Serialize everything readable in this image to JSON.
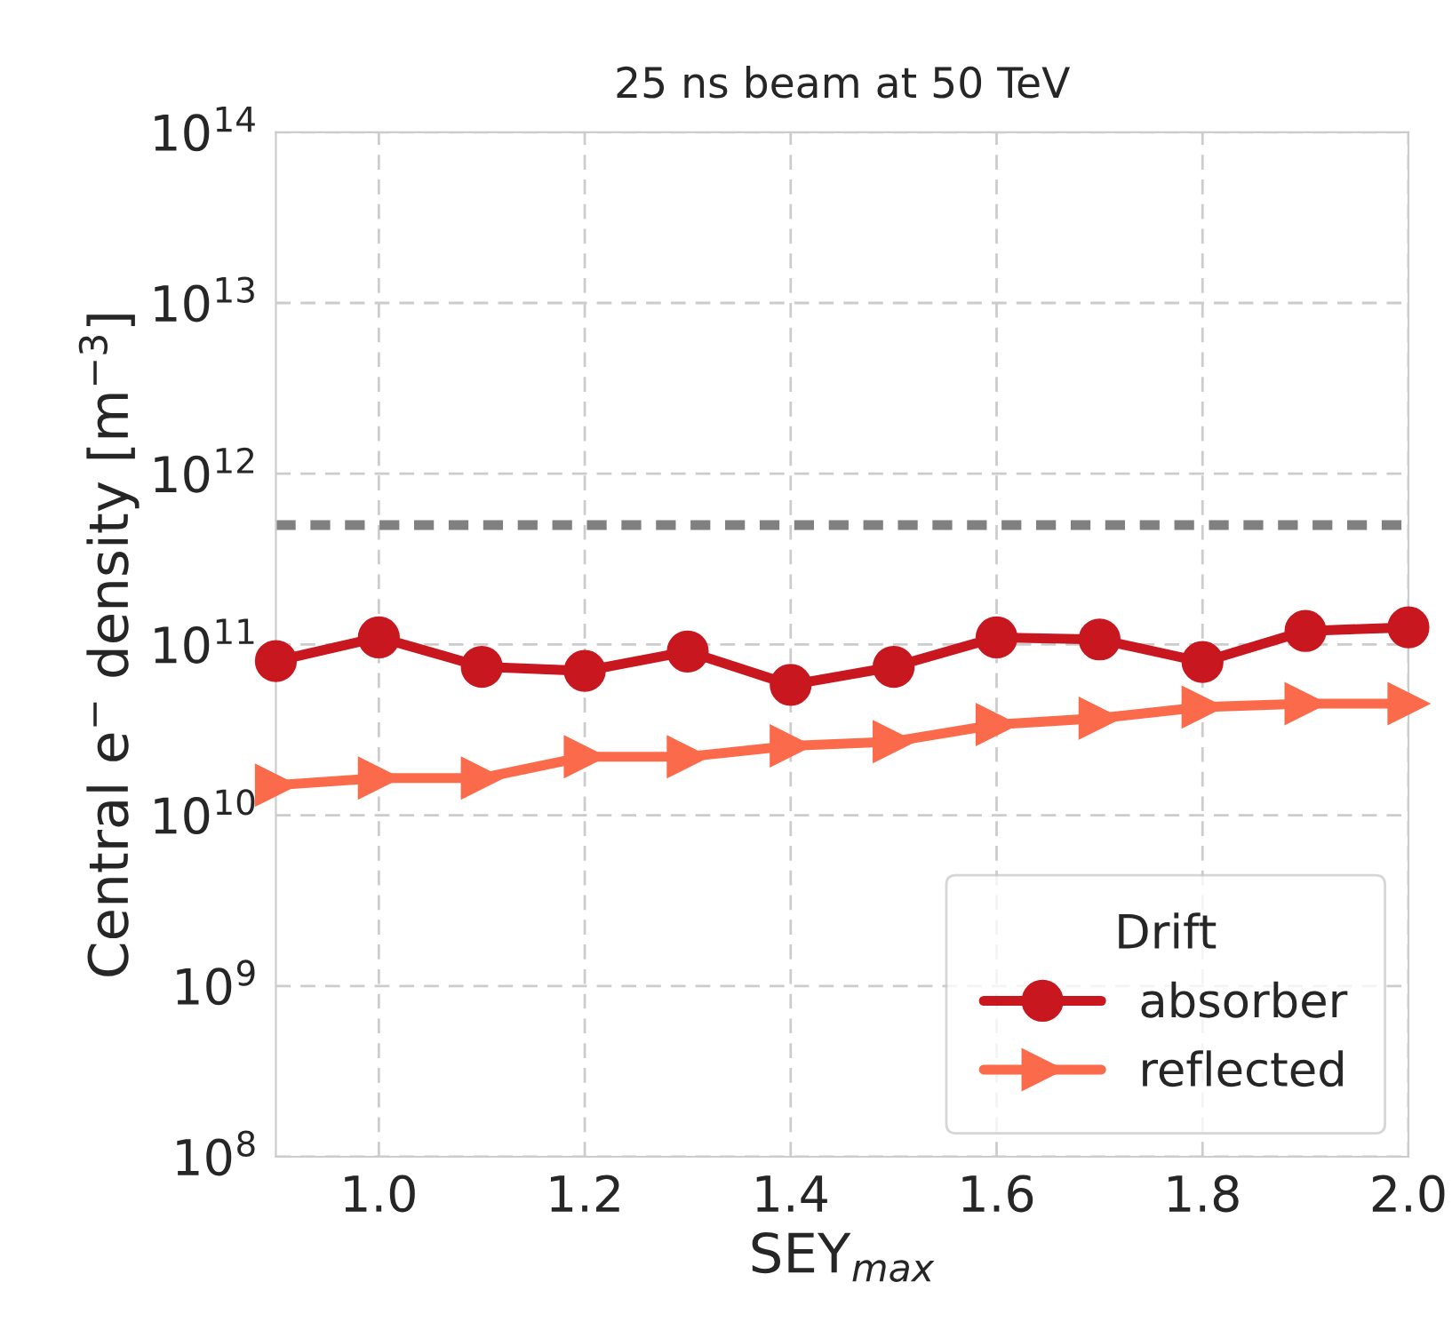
{
  "chart_data": {
    "type": "line",
    "title": "25 ns beam at 50 TeV",
    "xlabel": "SEY$_{max}$",
    "ylabel": "Central e$^{−}$ density [m$^{−3}$]",
    "legend_title": "Drift",
    "x": [
      0.9,
      1.0,
      1.1,
      1.2,
      1.3,
      1.4,
      1.5,
      1.6,
      1.7,
      1.8,
      1.9,
      2.0
    ],
    "series": [
      {
        "name": "absorber",
        "color": "#c8171e",
        "marker": "circle",
        "values": [
          80000000000.0,
          110000000000.0,
          74000000000.0,
          70000000000.0,
          91000000000.0,
          58000000000.0,
          74000000000.0,
          110000000000.0,
          107000000000.0,
          79000000000.0,
          120000000000.0,
          126000000000.0
        ]
      },
      {
        "name": "reflected",
        "color": "#fb6a4a",
        "marker": "triangle",
        "values": [
          15000000000.0,
          16500000000.0,
          16500000000.0,
          22000000000.0,
          22000000000.0,
          25500000000.0,
          27000000000.0,
          34000000000.0,
          37000000000.0,
          43000000000.0,
          45000000000.0,
          45000000000.0
        ]
      }
    ],
    "log": "y",
    "xlim": [
      0.9,
      2.0
    ],
    "xticks": [
      {
        "value": 1.0,
        "label": "1.0"
      },
      1.2,
      1.4,
      1.6,
      1.8,
      {
        "value": 2.0,
        "label": "2.0"
      }
    ],
    "ylim": [
      100000000.0,
      100000000000000.0
    ],
    "yticks": [
      {
        "value": 100000000.0,
        "label": "10$^{8}$"
      },
      {
        "value": 1000000000.0,
        "label": "10$^{9}$"
      },
      {
        "value": 10000000000.0,
        "label": "10$^{10}$"
      },
      {
        "value": 100000000000.0,
        "label": "10$^{11}$"
      },
      {
        "value": 1000000000000.0,
        "label": "10$^{12}$"
      },
      {
        "value": 10000000000000.0,
        "label": "10$^{13}$"
      },
      {
        "value": 100000000000000.0,
        "label": "10$^{14}$"
      }
    ],
    "ref_lines": [
      {
        "axis": "y",
        "value": 500000000000.0,
        "color": "#808080",
        "line_style": "dotted"
      }
    ],
    "grid": true,
    "legend": "bottom right"
  }
}
